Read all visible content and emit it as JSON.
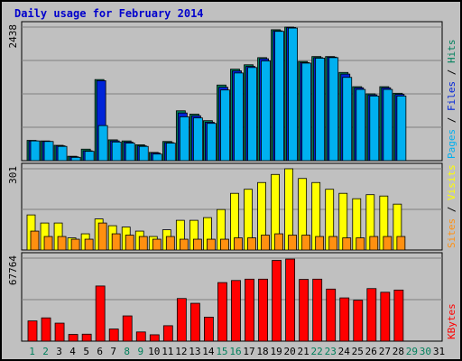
{
  "chart_data": {
    "type": "bar",
    "title": "Daily usage for February 2014",
    "categories": [
      "1",
      "2",
      "3",
      "4",
      "5",
      "6",
      "7",
      "8",
      "9",
      "10",
      "11",
      "12",
      "13",
      "14",
      "15",
      "16",
      "17",
      "18",
      "19",
      "20",
      "21",
      "22",
      "23",
      "24",
      "25",
      "26",
      "27",
      "28",
      "29",
      "30",
      "31"
    ],
    "weekend_days": [
      "1",
      "2",
      "8",
      "9",
      "15",
      "16",
      "22",
      "23",
      "29",
      "30"
    ],
    "panels": [
      {
        "name": "hits_files_pages",
        "max_label": "2438",
        "ylim": [
          0,
          2438
        ],
        "series": [
          {
            "name": "Hits",
            "color": "#00805c",
            "values": [
              370,
              360,
              280,
              80,
              210,
              1480,
              380,
              360,
              290,
              150,
              350,
              910,
              850,
              730,
              1380,
              1670,
              1750,
              1880,
              2390,
              2438,
              1810,
              1900,
              1900,
              1610,
              1350,
              1220,
              1350,
              1230,
              0,
              0,
              0
            ]
          },
          {
            "name": "Files",
            "color": "#0024d8",
            "values": [
              360,
              350,
              270,
              70,
              180,
              1460,
              360,
              340,
              270,
              140,
              330,
              870,
              820,
              700,
              1340,
              1640,
              1720,
              1860,
              2370,
              2430,
              1790,
              1880,
              1890,
              1580,
              1330,
              1200,
              1330,
              1210,
              0,
              0,
              0
            ]
          },
          {
            "name": "Pages",
            "color": "#00b0f0",
            "values": [
              360,
              350,
              260,
              60,
              170,
              640,
              340,
              320,
              260,
              120,
              320,
              800,
              780,
              680,
              1290,
              1600,
              1700,
              1820,
              2360,
              2420,
              1780,
              1870,
              1880,
              1520,
              1300,
              1180,
              1300,
              1180,
              0,
              0,
              0
            ]
          }
        ],
        "legend": [
          "Pages",
          "Files",
          "Hits"
        ],
        "legend_colors": [
          "#00b0f0",
          "#0024d8",
          "#00805c"
        ]
      },
      {
        "name": "visits_sites",
        "max_label": "301",
        "ylim": [
          0,
          301
        ],
        "series": [
          {
            "name": "Visits",
            "color": "#ffff00",
            "values": [
              130,
              100,
              100,
              45,
              60,
              115,
              90,
              85,
              70,
              50,
              75,
              110,
              110,
              120,
              150,
              210,
              225,
              250,
              280,
              301,
              265,
              250,
              225,
              210,
              190,
              205,
              200,
              170,
              0,
              0,
              0
            ]
          },
          {
            "name": "Sites",
            "color": "#ff9010",
            "values": [
              70,
              50,
              50,
              40,
              40,
              100,
              60,
              55,
              50,
              40,
              50,
              40,
              40,
              40,
              40,
              45,
              45,
              55,
              60,
              55,
              55,
              50,
              50,
              45,
              45,
              50,
              50,
              50,
              0,
              0,
              0
            ]
          }
        ],
        "legend": [
          "Sites",
          "Visits"
        ],
        "legend_colors": [
          "#ff9010",
          "#ffff00"
        ]
      },
      {
        "name": "kbytes",
        "max_label": "67764",
        "ylim": [
          0,
          67764
        ],
        "series": [
          {
            "name": "KBytes",
            "color": "#ff0000",
            "values": [
              16500,
              19000,
              14700,
              5500,
              5700,
              45000,
              9900,
              20600,
              7500,
              5200,
              12600,
              34800,
              30900,
              19600,
              47800,
              49500,
              50600,
              50600,
              65900,
              67000,
              50400,
              50600,
              42500,
              35300,
              33400,
              42900,
              39900,
              41700,
              0,
              0,
              0
            ]
          }
        ],
        "legend": [
          "KBytes"
        ],
        "legend_colors": [
          "#ff0000"
        ]
      }
    ],
    "grid": true
  }
}
